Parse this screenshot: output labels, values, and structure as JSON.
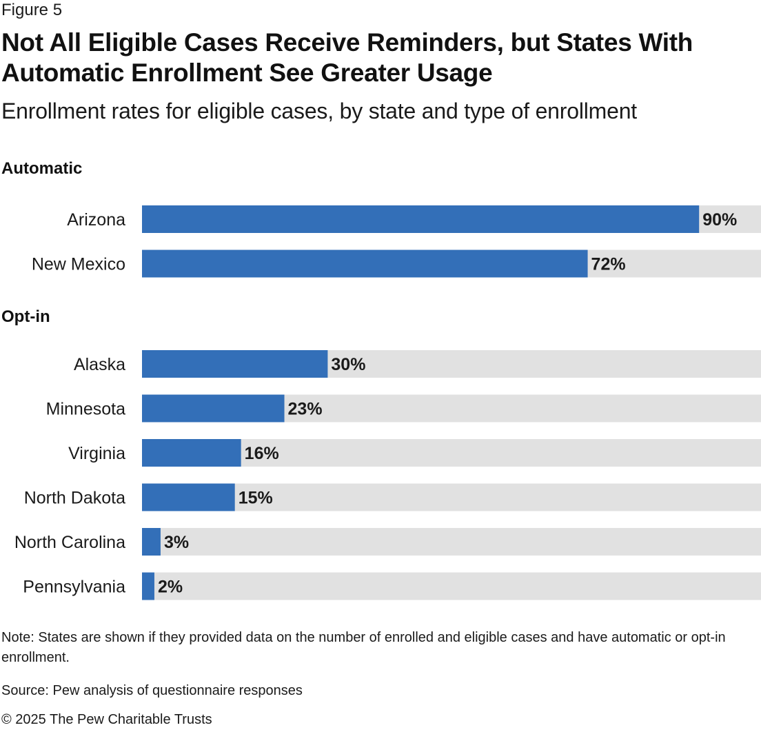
{
  "figure_label": "Figure 5",
  "title": "Not All Eligible Cases Receive Reminders, but States With Automatic Enrollment See Greater Usage",
  "subtitle": "Enrollment rates for eligible cases, by state and type of enrollment",
  "note": "Note: States are shown if they provided data on the number of enrolled and eligible cases and have automatic or opt-in enrollment.",
  "source": "Source: Pew analysis of questionnaire responses",
  "copyright": "© 2025 The Pew Charitable Trusts",
  "colors": {
    "bar": "#336fb8",
    "track": "#e1e1e1"
  },
  "chart_data": {
    "type": "bar",
    "orientation": "horizontal",
    "value_unit": "%",
    "xlim": [
      0,
      100
    ],
    "groups": [
      {
        "name": "Automatic",
        "categories": [
          "Arizona",
          "New Mexico"
        ],
        "values": [
          90,
          72
        ]
      },
      {
        "name": "Opt-in",
        "categories": [
          "Alaska",
          "Minnesota",
          "Virginia",
          "North Dakota",
          "North Carolina",
          "Pennsylvania"
        ],
        "values": [
          30,
          23,
          16,
          15,
          3,
          2
        ]
      }
    ]
  }
}
